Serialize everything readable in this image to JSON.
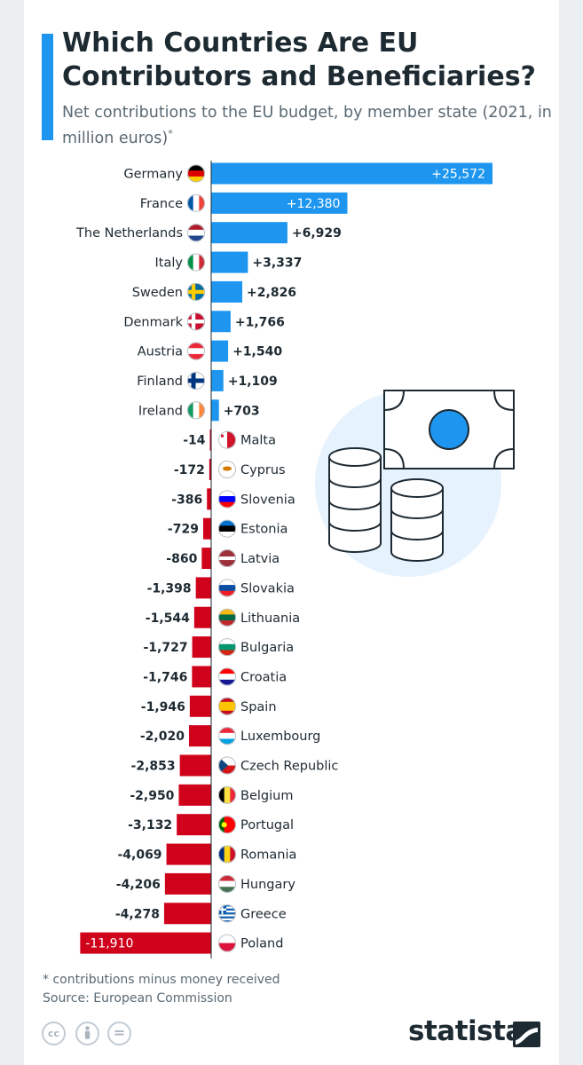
{
  "header": {
    "title": "Which Countries Are EU Contributors and Beneficiaries?",
    "subtitle": "Net contributions to the EU budget, by member state (2021, in million euros)",
    "subtitle_marker": "*"
  },
  "footer": {
    "footnote": "* contributions minus money received",
    "source": "Source: European Commission",
    "brand": "statista",
    "license_icons": [
      "cc-icon",
      "by-icon",
      "nd-icon"
    ]
  },
  "chart_data": {
    "type": "bar",
    "orientation": "horizontal",
    "categories": [
      "Germany",
      "France",
      "The Netherlands",
      "Italy",
      "Sweden",
      "Denmark",
      "Austria",
      "Finland",
      "Ireland",
      "Malta",
      "Cyprus",
      "Slovenia",
      "Estonia",
      "Latvia",
      "Slovakia",
      "Lithuania",
      "Bulgaria",
      "Croatia",
      "Spain",
      "Luxembourg",
      "Czech Republic",
      "Belgium",
      "Portugal",
      "Romania",
      "Hungary",
      "Greece",
      "Poland"
    ],
    "values": [
      25572,
      12380,
      6929,
      3337,
      2826,
      1766,
      1540,
      1109,
      703,
      -14,
      -172,
      -386,
      -729,
      -860,
      -1398,
      -1544,
      -1727,
      -1746,
      -1946,
      -2020,
      -2853,
      -2950,
      -3132,
      -4069,
      -4206,
      -4278,
      -11910
    ],
    "value_labels": [
      "+25,572",
      "+12,380",
      "+6,929",
      "+3,337",
      "+2,826",
      "+1,766",
      "+1,540",
      "+1,109",
      "+703",
      "-14",
      "-172",
      "-386",
      "-729",
      "-860",
      "-1,398",
      "-1,544",
      "-1,727",
      "-1,746",
      "-1,946",
      "-2,020",
      "-2,853",
      "-2,950",
      "-3,132",
      "-4,069",
      "-4,206",
      "-4,278",
      "-11,910"
    ],
    "colors": {
      "positive": "#1e96f0",
      "negative": "#d0021b"
    },
    "flags": [
      "germany-flag-icon",
      "france-flag-icon",
      "netherlands-flag-icon",
      "italy-flag-icon",
      "sweden-flag-icon",
      "denmark-flag-icon",
      "austria-flag-icon",
      "finland-flag-icon",
      "ireland-flag-icon",
      "malta-flag-icon",
      "cyprus-flag-icon",
      "slovenia-flag-icon",
      "estonia-flag-icon",
      "latvia-flag-icon",
      "slovakia-flag-icon",
      "lithuania-flag-icon",
      "bulgaria-flag-icon",
      "croatia-flag-icon",
      "spain-flag-icon",
      "luxembourg-flag-icon",
      "czech-republic-flag-icon",
      "belgium-flag-icon",
      "portugal-flag-icon",
      "romania-flag-icon",
      "hungary-flag-icon",
      "greece-flag-icon",
      "poland-flag-icon"
    ],
    "title": "Which Countries Are EU Contributors and Beneficiaries?",
    "xlabel": "",
    "ylabel": "",
    "grid": false,
    "legend": "none"
  }
}
